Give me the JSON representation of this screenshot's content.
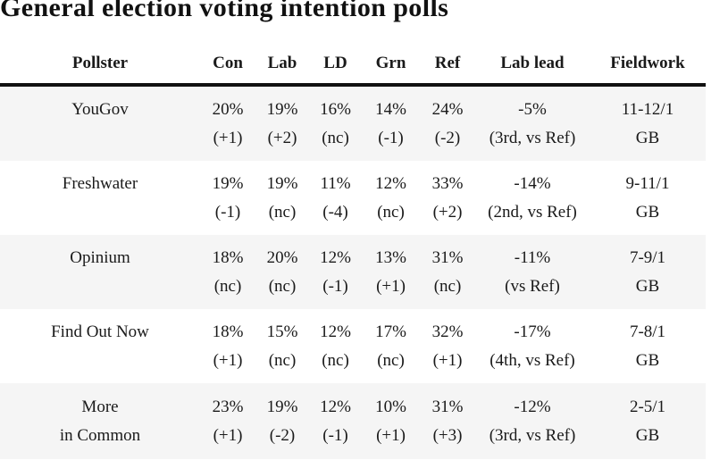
{
  "colors": {
    "background": "#ffffff",
    "row_shade": "#f5f5f5",
    "rule": "#111111",
    "text": "#1a1a1a"
  },
  "chart_data": {
    "type": "table",
    "title": "General election voting intention polls",
    "columns": [
      "Pollster",
      "Con",
      "Lab",
      "LD",
      "Grn",
      "Ref",
      "Lab lead",
      "Fieldwork"
    ],
    "rows": [
      {
        "pollster_lines": [
          "YouGov"
        ],
        "cells": [
          {
            "value": "20%",
            "change": "(+1)"
          },
          {
            "value": "19%",
            "change": "(+2)"
          },
          {
            "value": "16%",
            "change": "(nc)"
          },
          {
            "value": "14%",
            "change": "(-1)"
          },
          {
            "value": "24%",
            "change": "(-2)"
          },
          {
            "value": "-5%",
            "change": "(3rd, vs Ref)"
          },
          {
            "value": "11-12/1",
            "change": "GB"
          }
        ]
      },
      {
        "pollster_lines": [
          "Freshwater"
        ],
        "cells": [
          {
            "value": "19%",
            "change": "(-1)"
          },
          {
            "value": "19%",
            "change": "(nc)"
          },
          {
            "value": "11%",
            "change": "(-4)"
          },
          {
            "value": "12%",
            "change": "(nc)"
          },
          {
            "value": "33%",
            "change": "(+2)"
          },
          {
            "value": "-14%",
            "change": "(2nd, vs Ref)"
          },
          {
            "value": "9-11/1",
            "change": "GB"
          }
        ]
      },
      {
        "pollster_lines": [
          "Opinium"
        ],
        "cells": [
          {
            "value": "18%",
            "change": "(nc)"
          },
          {
            "value": "20%",
            "change": "(nc)"
          },
          {
            "value": "12%",
            "change": "(-1)"
          },
          {
            "value": "13%",
            "change": "(+1)"
          },
          {
            "value": "31%",
            "change": "(nc)"
          },
          {
            "value": "-11%",
            "change": "(vs Ref)"
          },
          {
            "value": "7-9/1",
            "change": "GB"
          }
        ]
      },
      {
        "pollster_lines": [
          "Find Out Now"
        ],
        "cells": [
          {
            "value": "18%",
            "change": "(+1)"
          },
          {
            "value": "15%",
            "change": "(nc)"
          },
          {
            "value": "12%",
            "change": "(nc)"
          },
          {
            "value": "17%",
            "change": "(nc)"
          },
          {
            "value": "32%",
            "change": "(+1)"
          },
          {
            "value": "-17%",
            "change": "(4th, vs Ref)"
          },
          {
            "value": "7-8/1",
            "change": "GB"
          }
        ]
      },
      {
        "pollster_lines": [
          "More",
          "in Common"
        ],
        "cells": [
          {
            "value": "23%",
            "change": "(+1)"
          },
          {
            "value": "19%",
            "change": "(-2)"
          },
          {
            "value": "12%",
            "change": "(-1)"
          },
          {
            "value": "10%",
            "change": "(+1)"
          },
          {
            "value": "31%",
            "change": "(+3)"
          },
          {
            "value": "-12%",
            "change": "(3rd, vs Ref)"
          },
          {
            "value": "2-5/1",
            "change": "GB"
          }
        ]
      }
    ]
  }
}
